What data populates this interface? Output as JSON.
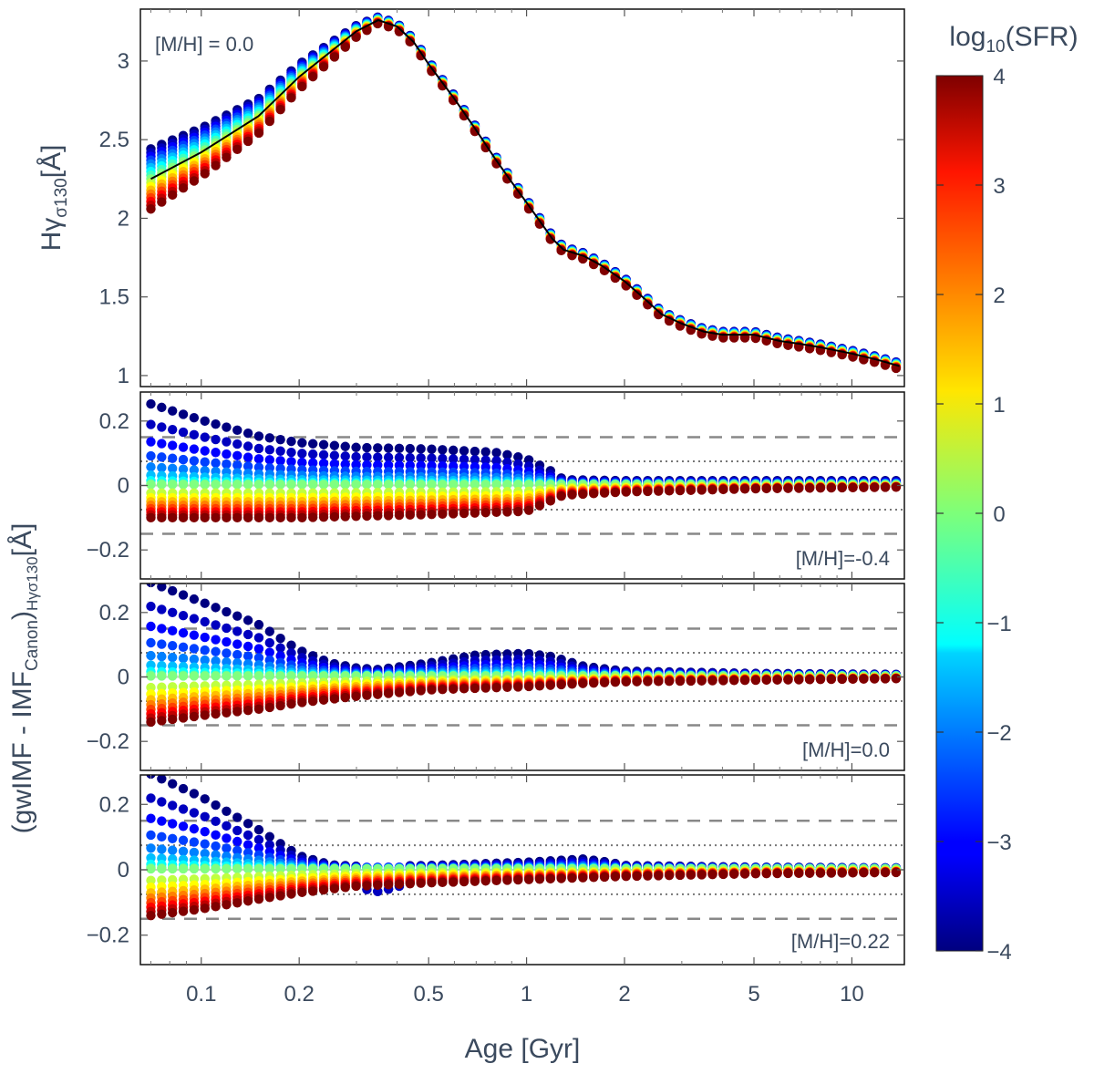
{
  "chart_data": {
    "type": "scatter",
    "x_label": "Age [Gyr]",
    "x_scale": "log",
    "x_range": [
      0.065,
      14.5
    ],
    "x_ticks": [
      {
        "value": 0.1,
        "label": "0.1"
      },
      {
        "value": 0.2,
        "label": "0.2"
      },
      {
        "value": 0.5,
        "label": "0.5"
      },
      {
        "value": 1,
        "label": "1"
      },
      {
        "value": 2,
        "label": "2"
      },
      {
        "value": 5,
        "label": "5"
      },
      {
        "value": 10,
        "label": "10"
      }
    ],
    "colorbar": {
      "label_main": "log",
      "label_sub": "10",
      "label_rest": "(SFR)",
      "range": [
        -4,
        4
      ],
      "ticks": [
        {
          "value": 4,
          "label": "4"
        },
        {
          "value": 3,
          "label": "3"
        },
        {
          "value": 2,
          "label": "2"
        },
        {
          "value": 1,
          "label": "1"
        },
        {
          "value": 0,
          "label": "0"
        },
        {
          "value": -1,
          "label": "−1"
        },
        {
          "value": -2,
          "label": "−2"
        },
        {
          "value": -3,
          "label": "−3"
        },
        {
          "value": -4,
          "label": "−4"
        }
      ]
    },
    "top_panel": {
      "ylabel_main": "Hγ",
      "ylabel_sub": "σ130",
      "ylabel_rest": "[Å]",
      "annotation": "[M/H] = 0.0",
      "ylim": [
        0.93,
        3.33
      ],
      "yticks": [
        {
          "value": 1,
          "label": "1"
        },
        {
          "value": 1.5,
          "label": "1.5"
        },
        {
          "value": 2,
          "label": "2"
        },
        {
          "value": 2.5,
          "label": "2.5"
        },
        {
          "value": 3,
          "label": "3"
        }
      ],
      "canonical_curve": {
        "ages": [
          0.07,
          0.1,
          0.15,
          0.2,
          0.25,
          0.3,
          0.35,
          0.4,
          0.45,
          0.5,
          0.6,
          0.7,
          0.8,
          0.9,
          1.0,
          1.1,
          1.2,
          1.3,
          1.5,
          1.7,
          2.0,
          2.3,
          2.6,
          3.0,
          3.5,
          4.0,
          5.0,
          6.0,
          7.0,
          8.0,
          10.0,
          12.0,
          14.0
        ],
        "values": [
          2.25,
          2.42,
          2.65,
          2.9,
          3.06,
          3.19,
          3.26,
          3.22,
          3.12,
          2.98,
          2.76,
          2.56,
          2.38,
          2.23,
          2.1,
          1.98,
          1.87,
          1.8,
          1.76,
          1.7,
          1.6,
          1.49,
          1.39,
          1.33,
          1.28,
          1.26,
          1.26,
          1.22,
          1.2,
          1.18,
          1.14,
          1.1,
          1.06
        ]
      }
    },
    "diff_panels": {
      "ylabel_part1": "(gwIMF - IMF",
      "ylabel_sub1": "Canon",
      "ylabel_part2": ")",
      "ylabel_sub2": "Hγσ130",
      "ylabel_part3": "[Å]",
      "ylim": [
        -0.29,
        0.29
      ],
      "yticks": [
        {
          "value": 0.2,
          "label": "0.2"
        },
        {
          "value": 0,
          "label": "0"
        },
        {
          "value": -0.2,
          "label": "−0.2"
        }
      ],
      "reference_lines": {
        "dashed": [
          0.15,
          -0.15
        ],
        "dotted": [
          0.075,
          -0.075
        ]
      },
      "panels": [
        {
          "annotation": "[M/H]=-0.4",
          "upper_envelope": {
            "ages": [
              0.07,
              0.1,
              0.15,
              0.2,
              0.3,
              0.5,
              0.8,
              1.0,
              1.2,
              1.3,
              2.0,
              5.0,
              14.0
            ],
            "values": [
              0.25,
              0.2,
              0.15,
              0.13,
              0.115,
              0.11,
              0.1,
              0.08,
              0.04,
              0.015,
              0.012,
              0.012,
              0.012
            ]
          },
          "lower_envelope": {
            "ages": [
              0.07,
              0.1,
              0.2,
              0.5,
              1.0,
              1.3,
              2.0,
              5.0,
              14.0
            ],
            "values": [
              -0.1,
              -0.1,
              -0.1,
              -0.09,
              -0.08,
              -0.03,
              -0.02,
              -0.01,
              -0.005
            ]
          }
        },
        {
          "annotation": "[M/H]=0.0",
          "upper_envelope": {
            "ages": [
              0.07,
              0.1,
              0.15,
              0.2,
              0.25,
              0.3,
              0.35,
              0.5,
              0.7,
              1.0,
              1.2,
              1.5,
              2.0,
              5.0,
              14.0
            ],
            "values": [
              0.29,
              0.23,
              0.16,
              0.08,
              0.04,
              0.025,
              0.02,
              0.04,
              0.065,
              0.07,
              0.06,
              0.03,
              0.015,
              0.008,
              0.005
            ]
          },
          "lower_envelope": {
            "ages": [
              0.07,
              0.1,
              0.15,
              0.2,
              0.3,
              0.5,
              1.0,
              1.5,
              2.0,
              5.0,
              14.0
            ],
            "values": [
              -0.14,
              -0.12,
              -0.1,
              -0.08,
              -0.06,
              -0.04,
              -0.03,
              -0.02,
              -0.015,
              -0.01,
              -0.005
            ]
          }
        },
        {
          "annotation": "[M/H]=0.22",
          "upper_envelope": {
            "ages": [
              0.07,
              0.1,
              0.15,
              0.2,
              0.25,
              0.3,
              0.5,
              1.0,
              1.5,
              1.8,
              2.0,
              5.0,
              14.0
            ],
            "values": [
              0.29,
              0.22,
              0.12,
              0.04,
              0.012,
              0.008,
              0.01,
              0.02,
              0.03,
              0.02,
              0.01,
              0.005,
              0.003
            ]
          },
          "lower_envelope": {
            "ages": [
              0.07,
              0.1,
              0.15,
              0.2,
              0.3,
              0.5,
              1.0,
              2.0,
              5.0,
              14.0
            ],
            "values": [
              -0.14,
              -0.12,
              -0.09,
              -0.07,
              -0.05,
              -0.04,
              -0.03,
              -0.02,
              -0.012,
              -0.008
            ]
          },
          "low_sfr_dip": {
            "ages": [
              0.33,
              0.36,
              0.39
            ],
            "values": [
              -0.06,
              -0.07,
              -0.05
            ]
          }
        }
      ]
    }
  }
}
